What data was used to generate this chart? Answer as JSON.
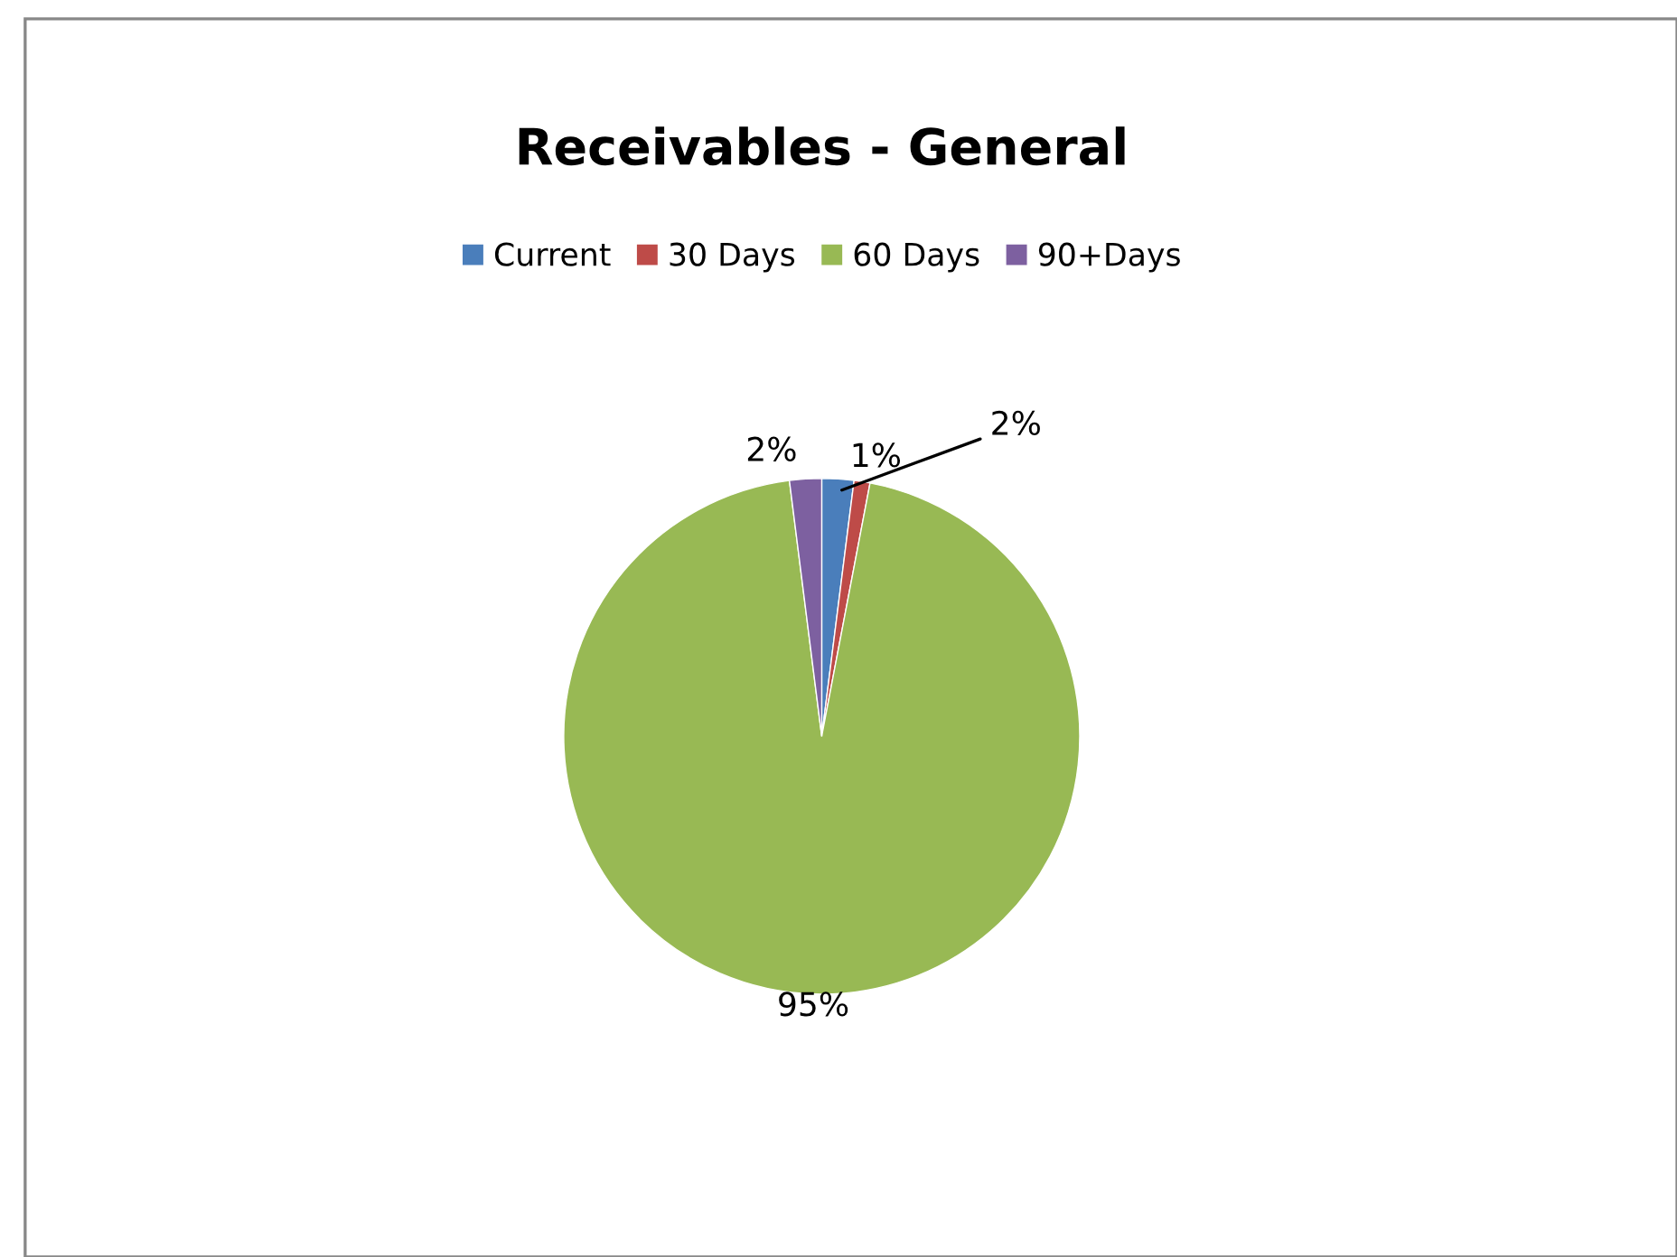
{
  "chart_data": {
    "type": "pie",
    "title": "Receivables - General",
    "categories": [
      "Current",
      "30 Days",
      "60 Days",
      "90+Days"
    ],
    "values": [
      2,
      1,
      95,
      2
    ],
    "value_labels": [
      "2%",
      "1%",
      "95%",
      "2%"
    ],
    "colors": [
      "#4a7ebb",
      "#be4b48",
      "#98b954",
      "#7d60a0"
    ],
    "legend": "top"
  }
}
